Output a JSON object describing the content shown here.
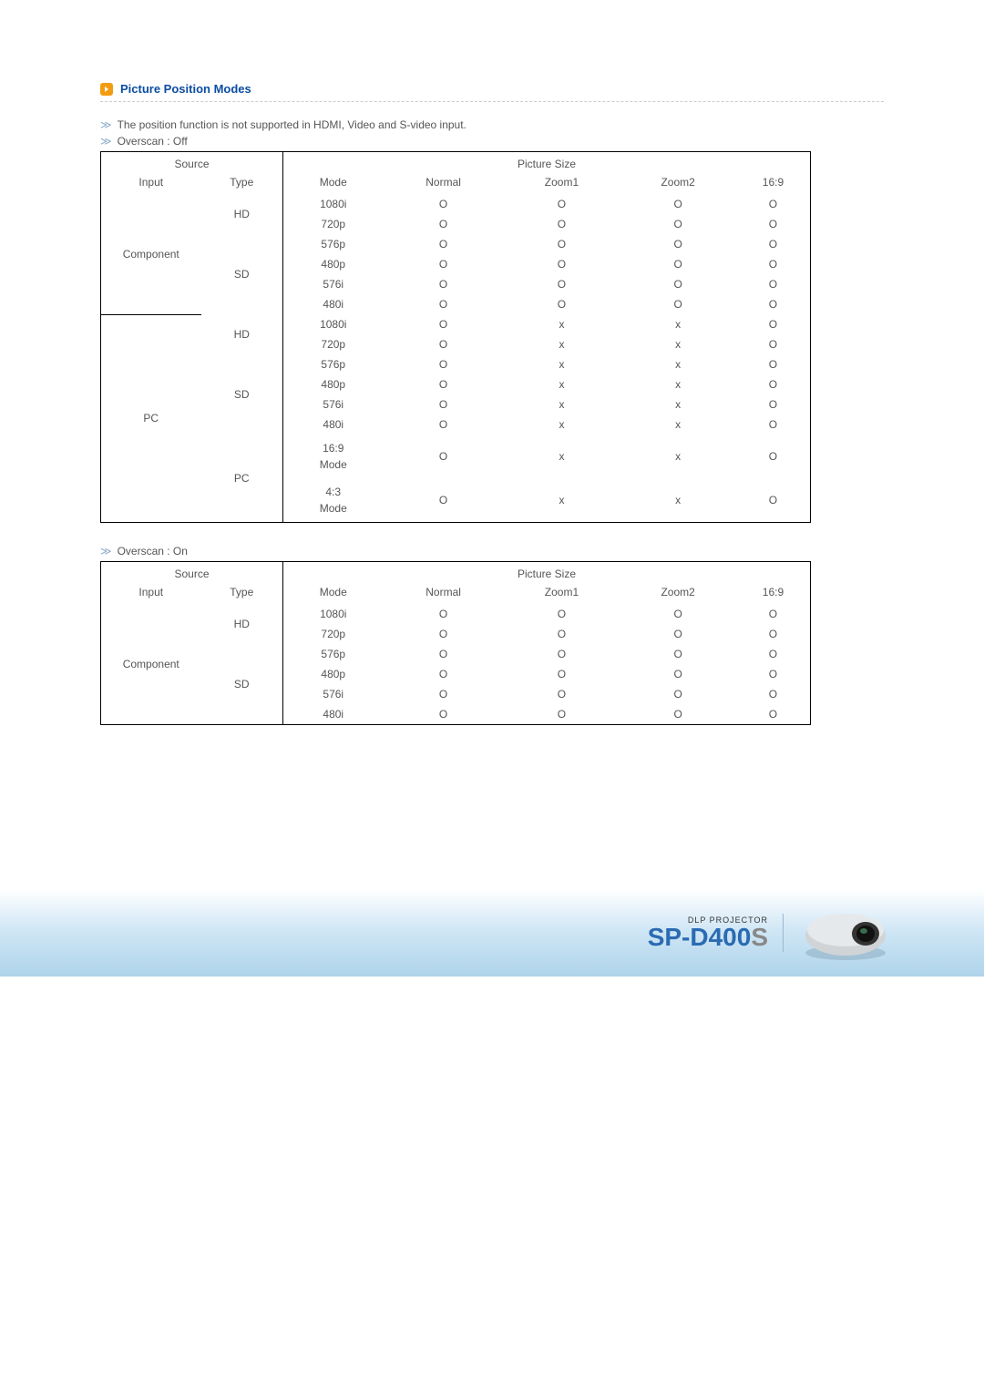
{
  "section_title": "Picture Position Modes",
  "note": "The position function is not supported in HDMI, Video and S-video input.",
  "overscan_off_label": "Overscan : Off",
  "overscan_on_label": "Overscan : On",
  "symbol_o": "O",
  "symbol_x": "x",
  "header": {
    "source": "Source",
    "picture_size": "Picture Size",
    "input": "Input",
    "type": "Type",
    "mode": "Mode",
    "normal": "Normal",
    "zoom1": "Zoom1",
    "zoom2": "Zoom2",
    "ratio169": "16:9"
  },
  "table_off": {
    "groups": [
      {
        "input": "Component",
        "subgroups": [
          {
            "type": "HD",
            "rows": [
              {
                "mode": "1080i",
                "v": [
                  "O",
                  "O",
                  "O",
                  "O"
                ]
              },
              {
                "mode": "720p",
                "v": [
                  "O",
                  "O",
                  "O",
                  "O"
                ]
              }
            ]
          },
          {
            "type": "SD",
            "rows": [
              {
                "mode": "576p",
                "v": [
                  "O",
                  "O",
                  "O",
                  "O"
                ]
              },
              {
                "mode": "480p",
                "v": [
                  "O",
                  "O",
                  "O",
                  "O"
                ]
              },
              {
                "mode": "576i",
                "v": [
                  "O",
                  "O",
                  "O",
                  "O"
                ]
              },
              {
                "mode": "480i",
                "v": [
                  "O",
                  "O",
                  "O",
                  "O"
                ]
              }
            ]
          }
        ]
      },
      {
        "input": "PC",
        "subgroups": [
          {
            "type": "HD",
            "rows": [
              {
                "mode": "1080i",
                "v": [
                  "O",
                  "x",
                  "x",
                  "O"
                ]
              },
              {
                "mode": "720p",
                "v": [
                  "O",
                  "x",
                  "x",
                  "O"
                ]
              }
            ]
          },
          {
            "type": "SD",
            "rows": [
              {
                "mode": "576p",
                "v": [
                  "O",
                  "x",
                  "x",
                  "O"
                ]
              },
              {
                "mode": "480p",
                "v": [
                  "O",
                  "x",
                  "x",
                  "O"
                ]
              },
              {
                "mode": "576i",
                "v": [
                  "O",
                  "x",
                  "x",
                  "O"
                ]
              },
              {
                "mode": "480i",
                "v": [
                  "O",
                  "x",
                  "x",
                  "O"
                ]
              }
            ]
          },
          {
            "type": "PC",
            "rows": [
              {
                "mode": "16:9\nMode",
                "v": [
                  "O",
                  "x",
                  "x",
                  "O"
                ],
                "multi": true
              },
              {
                "mode": "4:3\nMode",
                "v": [
                  "O",
                  "x",
                  "x",
                  "O"
                ],
                "multi": true
              }
            ]
          }
        ]
      }
    ]
  },
  "table_on": {
    "groups": [
      {
        "input": "Component",
        "subgroups": [
          {
            "type": "HD",
            "rows": [
              {
                "mode": "1080i",
                "v": [
                  "O",
                  "O",
                  "O",
                  "O"
                ]
              },
              {
                "mode": "720p",
                "v": [
                  "O",
                  "O",
                  "O",
                  "O"
                ]
              }
            ]
          },
          {
            "type": "SD",
            "rows": [
              {
                "mode": "576p",
                "v": [
                  "O",
                  "O",
                  "O",
                  "O"
                ]
              },
              {
                "mode": "480p",
                "v": [
                  "O",
                  "O",
                  "O",
                  "O"
                ]
              },
              {
                "mode": "576i",
                "v": [
                  "O",
                  "O",
                  "O",
                  "O"
                ]
              },
              {
                "mode": "480i",
                "v": [
                  "O",
                  "O",
                  "O",
                  "O"
                ]
              }
            ]
          }
        ]
      }
    ]
  },
  "footer": {
    "dlp": "DLP PROJECTOR",
    "model_main": "SP-D400",
    "model_suffix": "S"
  },
  "colors": {
    "title": "#0b4da2",
    "icon_bg": "#f39c12",
    "marker": "#8aa8c8",
    "text": "#555555",
    "border": "#000000",
    "banner_top": "#ffffff",
    "banner_mid": "#cfe6f5",
    "banner_bottom": "#aed4ea",
    "model": "#2a6bb2",
    "model_suffix": "#888888"
  }
}
